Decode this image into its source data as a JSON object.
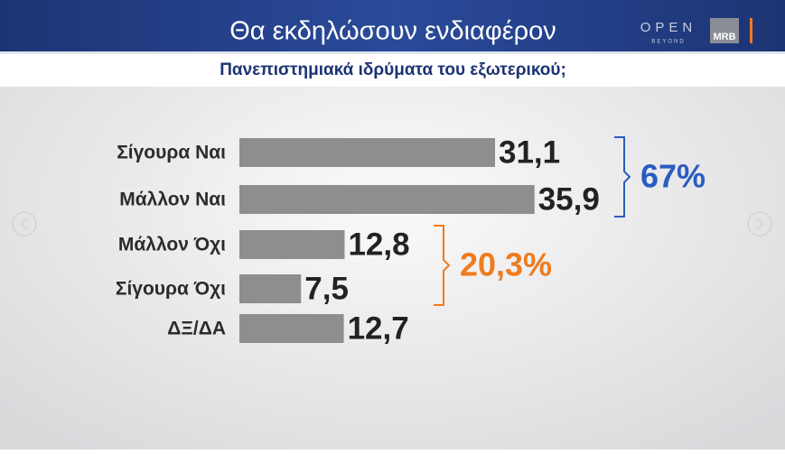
{
  "chart_data": {
    "type": "bar",
    "orientation": "horizontal",
    "title": "Θα εκδηλώσουν ενδιαφέρον",
    "subtitle": "Πανεπιστημιακά ιδρύματα του εξωτερικού;",
    "categories": [
      "Σίγουρα Ναι",
      "Μάλλον Ναι",
      "Μάλλον Όχι",
      "Σίγουρα Όχι",
      "ΔΞ/ΔΑ"
    ],
    "values": [
      31.1,
      35.9,
      12.8,
      7.5,
      12.7
    ],
    "value_labels": [
      "31,1",
      "35,9",
      "12,8",
      "7,5",
      "12,7"
    ],
    "color": "#8e8e8e",
    "annotations": [
      {
        "text": "67%",
        "color": "#2a5cc0"
      },
      {
        "text": "20,3%",
        "color": "#f07b1e"
      }
    ]
  },
  "branding": {
    "channel": "OPEN",
    "tagline": "BEYOND",
    "pollster": "MRB"
  }
}
